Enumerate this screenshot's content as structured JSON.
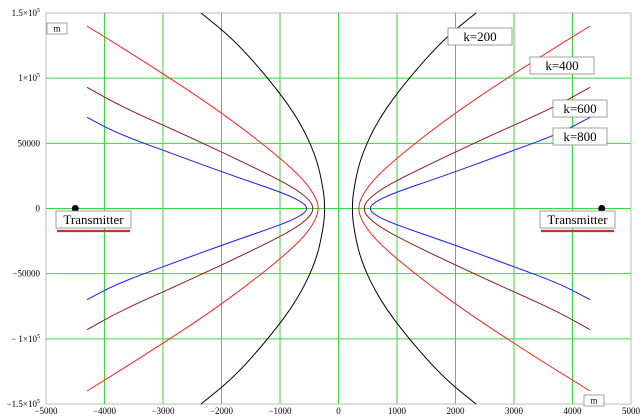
{
  "chart_data": {
    "type": "line",
    "xlim": [
      -5000,
      5000
    ],
    "ylim": [
      -150000,
      150000
    ],
    "grid": true,
    "grid_color": "#33dd33",
    "x_ticks": [
      {
        "value": -5000,
        "label": "−5000"
      },
      {
        "value": -4000,
        "label": "−4000"
      },
      {
        "value": -3000,
        "label": "−3000"
      },
      {
        "value": -2000,
        "label": "−2000"
      },
      {
        "value": -1000,
        "label": "−1000"
      },
      {
        "value": 0,
        "label": "0"
      },
      {
        "value": 1000,
        "label": "1000"
      },
      {
        "value": 2000,
        "label": "2000"
      },
      {
        "value": 3000,
        "label": "3000"
      },
      {
        "value": 4000,
        "label": "4000"
      },
      {
        "value": 5000,
        "label": "5000"
      }
    ],
    "y_ticks": [
      {
        "value": 150000,
        "base": "1.5×10",
        "exp": "5"
      },
      {
        "value": 100000,
        "base": "1×10",
        "exp": "5"
      },
      {
        "value": 50000,
        "base": "50000",
        "exp": ""
      },
      {
        "value": 0,
        "base": "0",
        "exp": ""
      },
      {
        "value": -50000,
        "base": "−50000",
        "exp": ""
      },
      {
        "value": -100000,
        "base": "− 1×10",
        "exp": "5"
      },
      {
        "value": -150000,
        "base": "−1.5×10",
        "exp": "5"
      }
    ],
    "x_unit": "m",
    "y_unit": "m",
    "series": [
      {
        "name": "k=200",
        "color": "#000000",
        "vertex_x": 230,
        "points": [
          [
            230,
            0
          ],
          [
            260,
            15000
          ],
          [
            380,
            40000
          ],
          [
            700,
            70000
          ],
          [
            1200,
            100000
          ],
          [
            1800,
            130000
          ],
          [
            2350,
            150000
          ]
        ]
      },
      {
        "name": "k=400",
        "color": "#ff2020",
        "vertex_x": 330,
        "points": [
          [
            330,
            0
          ],
          [
            400,
            10000
          ],
          [
            650,
            25000
          ],
          [
            1300,
            50000
          ],
          [
            2200,
            80000
          ],
          [
            3400,
            115000
          ],
          [
            4300,
            140000
          ]
        ]
      },
      {
        "name": "k=600",
        "color": "#8b1a1a",
        "vertex_x": 420,
        "points": [
          [
            420,
            0
          ],
          [
            500,
            7000
          ],
          [
            800,
            17000
          ],
          [
            1600,
            35000
          ],
          [
            2700,
            58000
          ],
          [
            3700,
            78000
          ],
          [
            4300,
            93000
          ]
        ]
      },
      {
        "name": "k=800",
        "color": "#1a1aff",
        "vertex_x": 520,
        "points": [
          [
            520,
            0
          ],
          [
            620,
            5000
          ],
          [
            950,
            12000
          ],
          [
            1800,
            25000
          ],
          [
            2900,
            43000
          ],
          [
            3800,
            58000
          ],
          [
            4300,
            70000
          ]
        ]
      }
    ],
    "transmitters": [
      {
        "x": -4500,
        "y": 0,
        "label": "Transmitter"
      },
      {
        "x": 4500,
        "y": 0,
        "label": "Transmitter"
      }
    ]
  }
}
